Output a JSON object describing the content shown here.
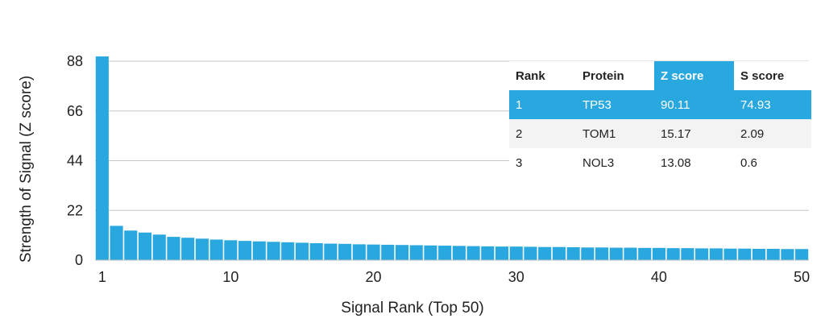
{
  "chart_data": {
    "type": "bar",
    "xlabel": "Signal Rank (Top 50)",
    "ylabel": "Strength of Signal (Z score)",
    "ylim": [
      0,
      88
    ],
    "yticks": [
      0,
      22,
      44,
      66,
      88
    ],
    "xticks": [
      1,
      10,
      20,
      30,
      40,
      50
    ],
    "grid": "horizontal",
    "bar_color": "#29a8e0",
    "x": [
      1,
      2,
      3,
      4,
      5,
      6,
      7,
      8,
      9,
      10,
      11,
      12,
      13,
      14,
      15,
      16,
      17,
      18,
      19,
      20,
      21,
      22,
      23,
      24,
      25,
      26,
      27,
      28,
      29,
      30,
      31,
      32,
      33,
      34,
      35,
      36,
      37,
      38,
      39,
      40,
      41,
      42,
      43,
      44,
      45,
      46,
      47,
      48,
      49,
      50
    ],
    "values": [
      90.11,
      15.17,
      13.08,
      12.2,
      11.3,
      10.3,
      9.9,
      9.5,
      9.1,
      8.8,
      8.5,
      8.3,
      8.1,
      7.9,
      7.7,
      7.5,
      7.3,
      7.2,
      7.0,
      6.9,
      6.8,
      6.7,
      6.6,
      6.5,
      6.4,
      6.3,
      6.2,
      6.1,
      6.0,
      6.0,
      5.9,
      5.8,
      5.8,
      5.7,
      5.6,
      5.6,
      5.5,
      5.5,
      5.4,
      5.4,
      5.3,
      5.3,
      5.2,
      5.2,
      5.1,
      5.1,
      5.0,
      5.0,
      4.9,
      4.9
    ]
  },
  "table": {
    "headers": [
      "Rank",
      "Protein",
      "Z score",
      "S score"
    ],
    "highlight_color": "#29a8e0",
    "rows": [
      [
        "1",
        "TP53",
        "90.11",
        "74.93"
      ],
      [
        "2",
        "TOM1",
        "15.17",
        "2.09"
      ],
      [
        "3",
        "NOL3",
        "13.08",
        "0.6"
      ]
    ]
  }
}
